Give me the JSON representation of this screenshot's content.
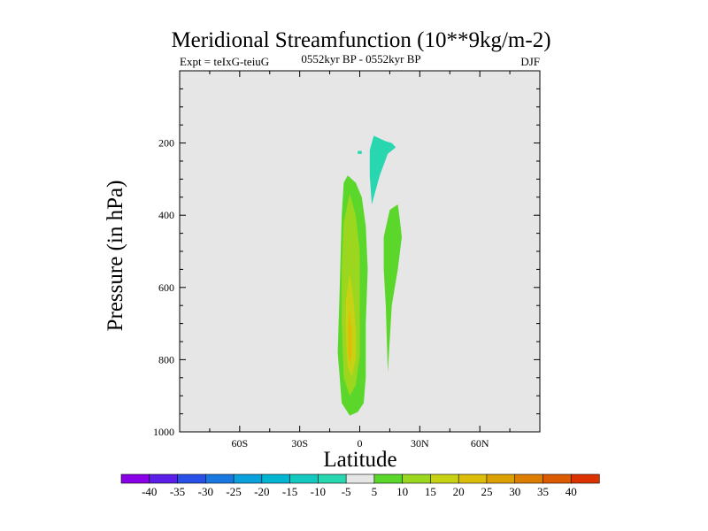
{
  "chart_data": {
    "type": "contour",
    "title": "Meridional Streamfunction (10**9kg/m-2)",
    "left_string": "Expt = teIxG-teiuG",
    "center_string": "0552kyr BP - 0552kyr BP",
    "right_string": "DJF",
    "xlabel": "Latitude",
    "ylabel": "Pressure (in hPa)",
    "xlim": [
      -90,
      90
    ],
    "ylim": [
      1000,
      0
    ],
    "x_ticks": [
      -60,
      -30,
      0,
      30,
      60
    ],
    "x_tick_labels": [
      "60S",
      "30S",
      "0",
      "30N",
      "60N"
    ],
    "y_ticks": [
      200,
      400,
      600,
      800,
      1000
    ],
    "y_tick_labels": [
      "200",
      "400",
      "600",
      "800",
      "1000"
    ],
    "background_color": "#e6e6e6",
    "colorbar": {
      "levels": [
        -40,
        -35,
        -30,
        -25,
        -20,
        -15,
        -10,
        -5,
        5,
        10,
        15,
        20,
        25,
        30,
        35,
        40
      ],
      "labels": [
        "-40",
        "-35",
        "-30",
        "-25",
        "-20",
        "-15",
        "-10",
        "-5",
        "5",
        "10",
        "15",
        "20",
        "25",
        "30",
        "35",
        "40"
      ],
      "colors": [
        "#8a00e6",
        "#5a1ee6",
        "#2850e6",
        "#1878e0",
        "#0aa0dc",
        "#00b4d2",
        "#14c8c0",
        "#28d6b0",
        "#e6e6e6",
        "#5ad72a",
        "#9bd71e",
        "#c8d214",
        "#dcbe0a",
        "#dca000",
        "#dc7d00",
        "#dc5a00",
        "#dc3200"
      ]
    },
    "regions": [
      {
        "name": "contour-region-cyan-upper",
        "value_range": [
          -10,
          -5
        ],
        "color": "#28d6b0",
        "points": [
          [
            7,
            180
          ],
          [
            13,
            195
          ],
          [
            16,
            200
          ],
          [
            18,
            212
          ],
          [
            14,
            230
          ],
          [
            10,
            290
          ],
          [
            6,
            370
          ],
          [
            5,
            290
          ],
          [
            5,
            220
          ]
        ]
      },
      {
        "name": "contour-region-cyan-dot",
        "value_range": [
          -10,
          -5
        ],
        "color": "#28d6b0",
        "points": [
          [
            -1,
            222
          ],
          [
            1,
            222
          ],
          [
            1,
            230
          ],
          [
            -1,
            230
          ]
        ]
      },
      {
        "name": "contour-region-green-right",
        "value_range": [
          5,
          10
        ],
        "color": "#5ad72a",
        "points": [
          [
            15,
            385
          ],
          [
            19,
            370
          ],
          [
            20,
            410
          ],
          [
            21,
            460
          ],
          [
            19,
            550
          ],
          [
            16,
            650
          ],
          [
            14,
            835
          ],
          [
            13,
            650
          ],
          [
            12,
            550
          ],
          [
            12,
            460
          ]
        ]
      },
      {
        "name": "contour-region-green-main",
        "value_range": [
          5,
          10
        ],
        "color": "#5ad72a",
        "points": [
          [
            -6,
            290
          ],
          [
            -2,
            310
          ],
          [
            1,
            350
          ],
          [
            3,
            430
          ],
          [
            4,
            550
          ],
          [
            3,
            700
          ],
          [
            3,
            850
          ],
          [
            2,
            920
          ],
          [
            -1,
            945
          ],
          [
            -5,
            955
          ],
          [
            -9,
            920
          ],
          [
            -10,
            850
          ],
          [
            -11,
            780
          ],
          [
            -10,
            600
          ],
          [
            -9,
            400
          ],
          [
            -8,
            310
          ]
        ]
      },
      {
        "name": "contour-region-lime",
        "value_range": [
          10,
          15
        ],
        "color": "#9bd71e",
        "points": [
          [
            -5,
            340
          ],
          [
            -2,
            400
          ],
          [
            0,
            500
          ],
          [
            0,
            650
          ],
          [
            0,
            790
          ],
          [
            -2,
            870
          ],
          [
            -5,
            900
          ],
          [
            -8,
            850
          ],
          [
            -9,
            700
          ],
          [
            -9,
            550
          ],
          [
            -8,
            420
          ]
        ]
      },
      {
        "name": "contour-region-yellow-green",
        "value_range": [
          15,
          20
        ],
        "color": "#c8d214",
        "points": [
          [
            -5,
            560
          ],
          [
            -3,
            640
          ],
          [
            -2,
            720
          ],
          [
            -2,
            800
          ],
          [
            -4,
            845
          ],
          [
            -6,
            820
          ],
          [
            -7,
            720
          ],
          [
            -7,
            640
          ]
        ]
      },
      {
        "name": "contour-region-orange-core",
        "value_range": [
          20,
          25
        ],
        "color": "#dcbe0a",
        "points": [
          [
            -5,
            660
          ],
          [
            -4,
            720
          ],
          [
            -4,
            790
          ],
          [
            -5,
            815
          ],
          [
            -6,
            780
          ],
          [
            -6,
            720
          ]
        ]
      }
    ]
  }
}
